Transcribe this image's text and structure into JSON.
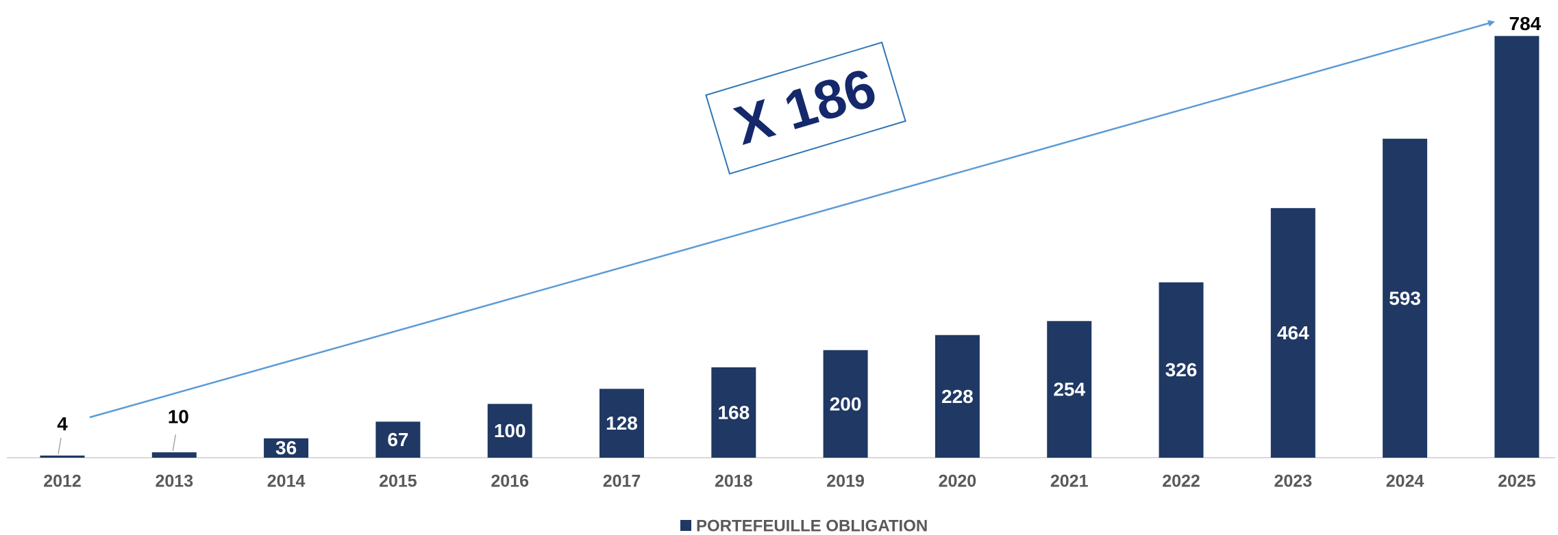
{
  "chart_data": {
    "type": "bar",
    "annotation": "X 186",
    "categories": [
      "2012",
      "2013",
      "2014",
      "2015",
      "2016",
      "2017",
      "2018",
      "2019",
      "2020",
      "2021",
      "2022",
      "2023",
      "2024",
      "2025"
    ],
    "series": [
      {
        "name": "PORTEFEUILLE OBLIGATION",
        "color": "#1f3864",
        "values": [
          4,
          10,
          36,
          67,
          100,
          128,
          168,
          200,
          228,
          254,
          326,
          464,
          593,
          784
        ]
      }
    ],
    "ylim": [
      0,
      800
    ],
    "legend": "bottom"
  }
}
